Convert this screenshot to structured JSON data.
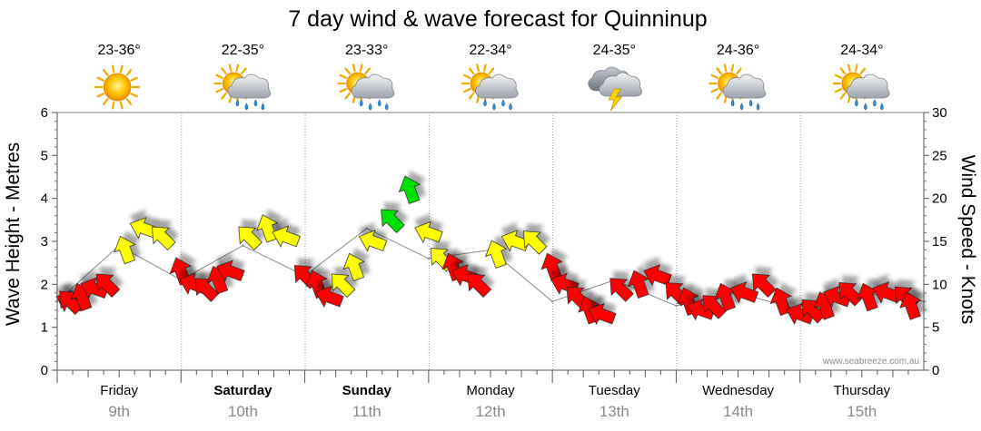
{
  "chart_data": {
    "type": "line",
    "title": "7 day wind & wave forecast for Quinninup",
    "y_left_label": "Wave Height - Metres",
    "y_right_label": "Wind Speed - Knots",
    "y_left_ticks": [
      "0",
      "1",
      "2",
      "3",
      "4",
      "5",
      "6"
    ],
    "y_right_ticks": [
      "0",
      "5",
      "10",
      "15",
      "20",
      "25",
      "30"
    ],
    "ylim_left": [
      0,
      6
    ],
    "ylim_right": [
      0,
      30
    ],
    "watermark": "www.seabreeze.com.au",
    "days": [
      {
        "temp": "23-36°",
        "weather_icon": "sun-icon",
        "name": "Friday",
        "date": "9th",
        "bold": false
      },
      {
        "temp": "22-35°",
        "weather_icon": "sun-cloud-rain-icon",
        "name": "Saturday",
        "date": "10th",
        "bold": true
      },
      {
        "temp": "23-33°",
        "weather_icon": "sun-cloud-rain-icon",
        "name": "Sunday",
        "date": "11th",
        "bold": true
      },
      {
        "temp": "22-34°",
        "weather_icon": "sun-cloud-rain-icon",
        "name": "Monday",
        "date": "12th",
        "bold": false
      },
      {
        "temp": "24-35°",
        "weather_icon": "storm-cloud-icon",
        "name": "Tuesday",
        "date": "13th",
        "bold": false
      },
      {
        "temp": "24-36°",
        "weather_icon": "sun-cloud-rain-icon",
        "name": "Wednesday",
        "date": "14th",
        "bold": false
      },
      {
        "temp": "24-34°",
        "weather_icon": "sun-cloud-rain-icon",
        "name": "Thursday",
        "date": "15th",
        "bold": false
      }
    ],
    "series": [
      {
        "name": "Wind Speed - Knots",
        "x_unit": "days from start",
        "x": [
          0.0,
          0.1,
          0.2,
          0.3,
          0.4,
          0.55,
          0.7,
          0.85,
          1.0,
          1.1,
          1.2,
          1.3,
          1.4,
          1.55,
          1.7,
          1.85,
          2.0,
          2.1,
          2.2,
          2.3,
          2.4,
          2.55,
          2.7,
          2.85,
          3.0,
          3.1,
          3.2,
          3.3,
          3.4,
          3.55,
          3.7,
          3.85,
          4.0,
          4.1,
          4.2,
          4.3,
          4.4,
          4.55,
          4.7,
          4.85,
          5.0,
          5.1,
          5.2,
          5.3,
          5.4,
          5.55,
          5.7,
          5.85,
          6.0,
          6.1,
          6.2,
          6.3,
          6.4,
          6.55,
          6.7,
          6.85,
          7.0
        ],
        "values": [
          8,
          8,
          8.5,
          9.5,
          10,
          14,
          16.5,
          15.5,
          11.5,
          10,
          9.5,
          10.5,
          11.5,
          15.5,
          16.5,
          15.5,
          11,
          10,
          8.5,
          10,
          12,
          15,
          17.5,
          21,
          16,
          13,
          12,
          11,
          10,
          13.5,
          15,
          15,
          12,
          10,
          8.5,
          7,
          6.5,
          9.5,
          10,
          11,
          9,
          8,
          7,
          7.5,
          8.5,
          9,
          10,
          8,
          6.5,
          7,
          7.5,
          8.5,
          9,
          8.5,
          9,
          8.5,
          7.5
        ],
        "colors": [
          "red",
          "red",
          "red",
          "red",
          "red",
          "yellow",
          "yellow",
          "yellow",
          "red",
          "red",
          "red",
          "red",
          "red",
          "yellow",
          "yellow",
          "yellow",
          "red",
          "red",
          "red",
          "yellow",
          "yellow",
          "yellow",
          "green",
          "green",
          "yellow",
          "yellow",
          "red",
          "red",
          "red",
          "yellow",
          "yellow",
          "yellow",
          "red",
          "red",
          "red",
          "red",
          "red",
          "red",
          "red",
          "red",
          "red",
          "red",
          "red",
          "red",
          "red",
          "red",
          "red",
          "red",
          "red",
          "red",
          "red",
          "red",
          "red",
          "red",
          "red",
          "red",
          "red"
        ]
      },
      {
        "name": "Wave Height - Metres",
        "x": [
          0.0,
          0.5,
          1.0,
          1.5,
          2.0,
          2.5,
          3.0,
          3.5,
          4.0,
          4.5,
          5.0,
          5.5,
          6.0,
          6.5,
          7.0
        ],
        "values": [
          1.6,
          2.9,
          2.1,
          2.9,
          2.2,
          3.3,
          2.6,
          2.8,
          1.6,
          2.1,
          1.5,
          1.8,
          1.4,
          1.8,
          1.6
        ]
      }
    ]
  },
  "colors": {
    "red": "#ff0000",
    "yellow": "#ffff00",
    "green": "#00e000",
    "outline": "#222222"
  }
}
